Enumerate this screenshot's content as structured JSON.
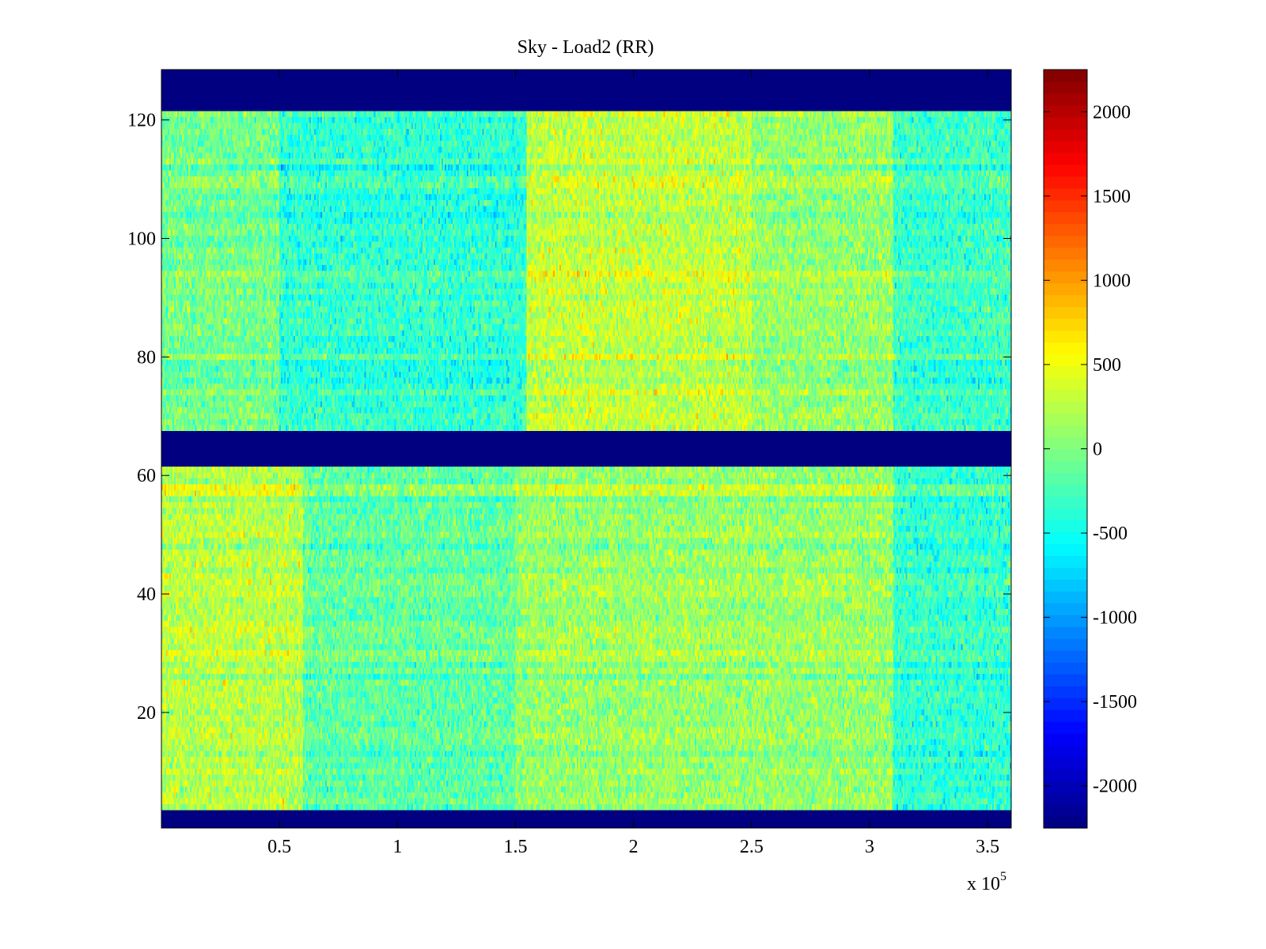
{
  "chart_data": {
    "type": "heatmap",
    "title": "Sky - Load2 (RR)",
    "xlabel": "",
    "ylabel": "",
    "xlim": [
      0,
      3.6
    ],
    "ylim": [
      0.5,
      128.5
    ],
    "x_multiplier": {
      "base": "x 10",
      "exponent": "5"
    },
    "x_ticks": [
      {
        "value": 0.5,
        "label": "0.5"
      },
      {
        "value": 1,
        "label": "1"
      },
      {
        "value": 1.5,
        "label": "1.5"
      },
      {
        "value": 2,
        "label": "2"
      },
      {
        "value": 2.5,
        "label": "2.5"
      },
      {
        "value": 3,
        "label": "3"
      },
      {
        "value": 3.5,
        "label": "3.5"
      }
    ],
    "y_ticks": [
      {
        "value": 20,
        "label": "20"
      },
      {
        "value": 40,
        "label": "40"
      },
      {
        "value": 60,
        "label": "60"
      },
      {
        "value": 80,
        "label": "80"
      },
      {
        "value": 100,
        "label": "100"
      },
      {
        "value": 120,
        "label": "120"
      }
    ],
    "colorbar": {
      "colormap": "jet",
      "clim": [
        -2250,
        2250
      ],
      "ticks": [
        {
          "value": 2000,
          "label": "2000"
        },
        {
          "value": 1500,
          "label": "1500"
        },
        {
          "value": 1000,
          "label": "1000"
        },
        {
          "value": 500,
          "label": "500"
        },
        {
          "value": 0,
          "label": "0"
        },
        {
          "value": -500,
          "label": "-500"
        },
        {
          "value": -1000,
          "label": "-1000"
        },
        {
          "value": -1500,
          "label": "-1500"
        },
        {
          "value": -2000,
          "label": "-2000"
        }
      ]
    },
    "masked_rows": [
      [
        1,
        3
      ],
      [
        62,
        67
      ],
      [
        122,
        128
      ]
    ],
    "masked_value": -2250,
    "typical_range": [
      -1500,
      1500
    ],
    "regions": [
      {
        "x": [
          0,
          0.6
        ],
        "y": [
          4,
          61
        ],
        "mean": 250
      },
      {
        "x": [
          0.6,
          1.5
        ],
        "y": [
          4,
          61
        ],
        "mean": -150
      },
      {
        "x": [
          1.5,
          3.1
        ],
        "y": [
          4,
          61
        ],
        "mean": 100
      },
      {
        "x": [
          3.1,
          3.6
        ],
        "y": [
          4,
          61
        ],
        "mean": -350
      },
      {
        "x": [
          0,
          0.5
        ],
        "y": [
          68,
          121
        ],
        "mean": -50
      },
      {
        "x": [
          0.5,
          1.55
        ],
        "y": [
          68,
          121
        ],
        "mean": -350
      },
      {
        "x": [
          1.55,
          2.5
        ],
        "y": [
          68,
          121
        ],
        "mean": 300
      },
      {
        "x": [
          2.5,
          3.1
        ],
        "y": [
          68,
          121
        ],
        "mean": 100
      },
      {
        "x": [
          3.1,
          3.6
        ],
        "y": [
          68,
          121
        ],
        "mean": -300
      }
    ]
  }
}
